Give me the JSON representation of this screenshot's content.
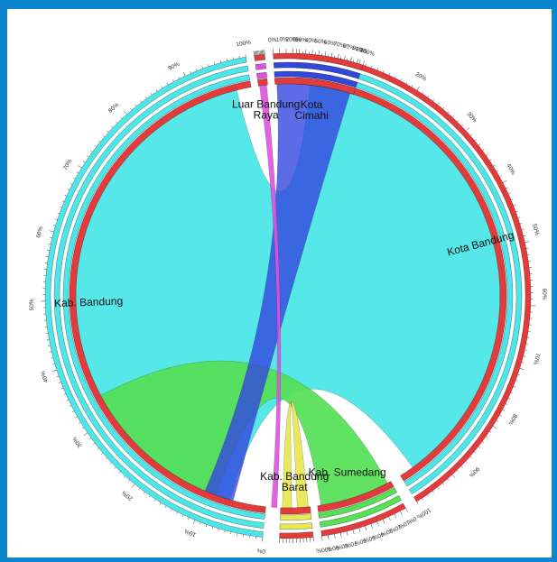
{
  "chart_data": {
    "type": "chord",
    "title": "",
    "segments": [
      {
        "key": "kota-bandung",
        "label_lines": [
          "Kota Bandung"
        ],
        "color": "#4de6e8",
        "start": 2,
        "end": 148,
        "ring_out": "#e33b3b"
      },
      {
        "key": "kab-sumedang",
        "label_lines": [
          "Kab. Sumedang"
        ],
        "color": "#55e055",
        "start": 151,
        "end": 172,
        "ring_out": "#e33b3b"
      },
      {
        "key": "kab-bandung-barat",
        "label_lines": [
          "Kab. Bandung",
          "Barat"
        ],
        "color": "#e8e854",
        "start": 174,
        "end": 182,
        "ring_out": "#e33b3b"
      },
      {
        "key": "kab-bandung",
        "label_lines": [
          "Kab. Bandung"
        ],
        "color": "#4de6e8",
        "start": 186,
        "end": 350,
        "ring_out": "#4de6e8"
      },
      {
        "key": "luar-bandung-raya",
        "label_lines": [
          "Luar Bandung",
          "Raya"
        ],
        "color": "#e050e0",
        "start": 352,
        "end": 354.5,
        "ring_out": "#e33b3b"
      },
      {
        "key": "kota-cimahi",
        "label_lines": [
          "Kota",
          "Cimahi"
        ],
        "color": "#3346e0",
        "start": 356.5,
        "end": 378,
        "ring_out": "#e33b3b"
      }
    ],
    "percent_ticks": [
      "0%",
      "10%",
      "20%",
      "30%",
      "40%",
      "50%",
      "60%",
      "70%",
      "80%",
      "90%",
      "100%"
    ],
    "colors": {
      "kota_bandung": "#4de6e8",
      "kab_bandung": "#e33b3b",
      "kab_sumedang": "#55e055",
      "kab_bandung_barat": "#e8e854",
      "luar_bandung_raya": "#e050e0",
      "kota_cimahi": "#3346e0",
      "frame": "#0e86cf"
    }
  }
}
